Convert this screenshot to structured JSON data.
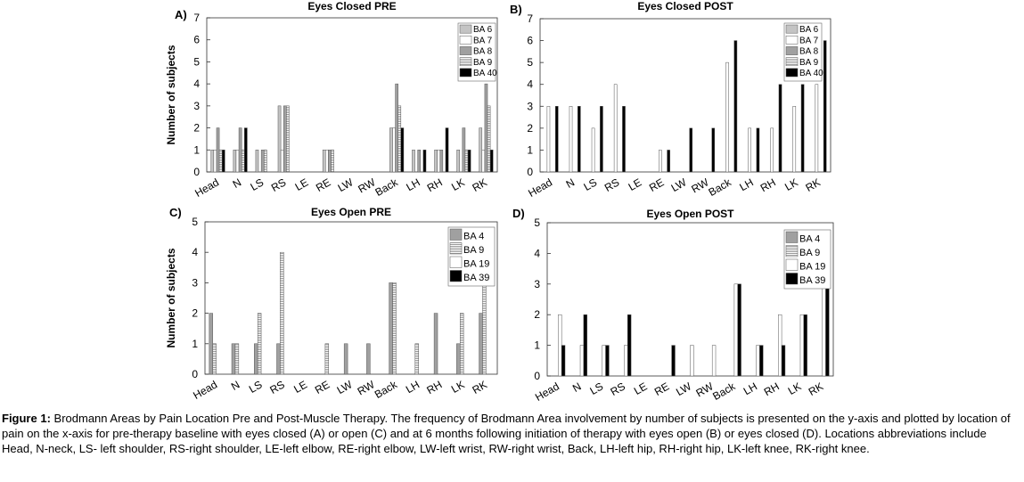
{
  "caption": {
    "label": "Figure 1:",
    "text": "Brodmann Areas by Pain Location Pre and Post-Muscle Therapy. The frequency of Brodmann Area involvement by number of subjects is presented on the y-axis and plotted by location of pain on the x-axis for pre-therapy baseline with eyes closed (A) or open (C) and at 6 months following initiation of therapy with eyes open (B) or eyes closed (D). Locations abbreviations include Head, N-neck, LS- left shoulder, RS-right shoulder, LE-left elbow, RE-right elbow, LW-left wrist, RW-right  wrist, Back, LH-left hip, RH-right hip, LK-left knee, RK-right knee."
  },
  "colors": {
    "BA 6": "#c4c4c4",
    "BA 7": "#ffffff",
    "BA 8": "#a0a0a0",
    "BA 9": "#e6e6e6",
    "BA 40": "#000000",
    "BA 4": "#a0a0a0",
    "BA 19": "#ffffff",
    "BA 39": "#000000"
  },
  "chart_data": [
    {
      "panel": "A)",
      "type": "bar",
      "title": "Eyes Closed PRE",
      "ylabel": "Number of subjects",
      "ylim": [
        0,
        7
      ],
      "yticks": [
        0,
        1,
        2,
        3,
        4,
        5,
        6,
        7
      ],
      "categories": [
        "Head",
        "N",
        "LS",
        "RS",
        "LE",
        "RE",
        "LW",
        "RW",
        "Back",
        "LH",
        "RH",
        "LK",
        "RK"
      ],
      "legend_position": "top-right",
      "series": [
        {
          "name": "BA 6",
          "values": [
            1,
            1,
            1,
            3,
            0,
            1,
            0,
            0,
            2,
            1,
            1,
            1,
            2
          ]
        },
        {
          "name": "BA 7",
          "values": [
            1,
            1,
            0,
            1,
            0,
            1,
            0,
            0,
            2,
            0,
            1,
            0,
            1
          ]
        },
        {
          "name": "BA 8",
          "values": [
            2,
            2,
            1,
            3,
            0,
            1,
            0,
            0,
            4,
            1,
            1,
            2,
            4
          ]
        },
        {
          "name": "BA 9",
          "values": [
            1,
            1,
            1,
            3,
            0,
            1,
            0,
            0,
            3,
            0,
            0,
            1,
            3
          ]
        },
        {
          "name": "BA 40",
          "values": [
            1,
            2,
            0,
            0,
            0,
            0,
            0,
            0,
            2,
            1,
            2,
            1,
            1
          ]
        }
      ]
    },
    {
      "panel": "B)",
      "type": "bar",
      "title": "Eyes Closed POST",
      "ylabel": "",
      "ylim": [
        0,
        7
      ],
      "yticks": [
        0,
        1,
        2,
        3,
        4,
        5,
        6,
        7
      ],
      "categories": [
        "Head",
        "N",
        "LS",
        "RS",
        "LE",
        "RE",
        "LW",
        "RW",
        "Back",
        "LH",
        "RH",
        "LK",
        "RK"
      ],
      "legend_position": "top-right",
      "series": [
        {
          "name": "BA 6",
          "values": [
            0,
            0,
            0,
            0,
            0,
            0,
            0,
            0,
            0,
            0,
            0,
            0,
            0
          ]
        },
        {
          "name": "BA 7",
          "values": [
            3,
            3,
            2,
            4,
            0,
            1,
            0,
            0,
            5,
            2,
            2,
            3,
            4
          ]
        },
        {
          "name": "BA 8",
          "values": [
            0,
            0,
            0,
            0,
            0,
            0,
            0,
            0,
            0,
            0,
            0,
            0,
            0
          ]
        },
        {
          "name": "BA 9",
          "values": [
            0,
            0,
            0,
            0,
            0,
            0,
            0,
            0,
            0,
            0,
            0,
            0,
            0
          ]
        },
        {
          "name": "BA 40",
          "values": [
            3,
            3,
            3,
            3,
            0,
            1,
            2,
            2,
            6,
            2,
            4,
            4,
            6
          ]
        }
      ]
    },
    {
      "panel": "C)",
      "type": "bar",
      "title": "Eyes Open PRE",
      "ylabel": "Number of subjects",
      "ylim": [
        0,
        5
      ],
      "yticks": [
        0,
        1,
        2,
        3,
        4,
        5
      ],
      "categories": [
        "Head",
        "N",
        "LS",
        "RS",
        "LE",
        "RE",
        "LW",
        "RW",
        "Back",
        "LH",
        "RH",
        "LK",
        "RK"
      ],
      "legend_position": "top-right",
      "series": [
        {
          "name": "BA 4",
          "values": [
            2,
            1,
            1,
            1,
            0,
            0,
            1,
            1,
            3,
            0,
            2,
            1,
            2
          ]
        },
        {
          "name": "BA 9",
          "values": [
            1,
            1,
            2,
            4,
            0,
            1,
            0,
            0,
            3,
            1,
            0,
            2,
            3
          ]
        },
        {
          "name": "BA 19",
          "values": [
            0,
            0,
            0,
            0,
            0,
            0,
            0,
            0,
            0,
            0,
            0,
            0,
            0
          ]
        },
        {
          "name": "BA 39",
          "values": [
            0,
            0,
            0,
            0,
            0,
            0,
            0,
            0,
            0,
            0,
            0,
            0,
            0
          ]
        }
      ]
    },
    {
      "panel": "D)",
      "type": "bar",
      "title": "Eyes Open POST",
      "ylabel": "",
      "ylim": [
        0,
        5
      ],
      "yticks": [
        0,
        1,
        2,
        3,
        4,
        5
      ],
      "categories": [
        "Head",
        "N",
        "LS",
        "RS",
        "LE",
        "RE",
        "LW",
        "RW",
        "Back",
        "LH",
        "RH",
        "LK",
        "RK"
      ],
      "legend_position": "top-right",
      "series": [
        {
          "name": "BA 4",
          "values": [
            0,
            0,
            0,
            0,
            0,
            0,
            0,
            0,
            0,
            0,
            0,
            0,
            0
          ]
        },
        {
          "name": "BA 9",
          "values": [
            0,
            0,
            0,
            0,
            0,
            0,
            0,
            0,
            0,
            0,
            0,
            0,
            0
          ]
        },
        {
          "name": "BA 19",
          "values": [
            2,
            1,
            1,
            1,
            0,
            0,
            1,
            1,
            3,
            1,
            2,
            2,
            3
          ]
        },
        {
          "name": "BA 39",
          "values": [
            1,
            2,
            1,
            2,
            0,
            1,
            0,
            0,
            3,
            1,
            1,
            2,
            3
          ]
        }
      ]
    }
  ]
}
